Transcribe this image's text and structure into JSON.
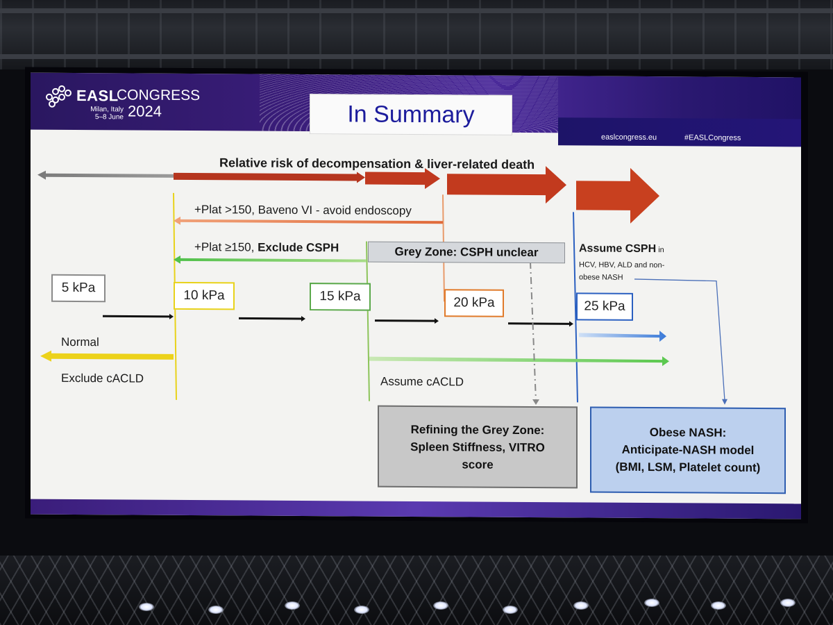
{
  "banner": {
    "brand": "EASL",
    "brand_word": "CONGRESS",
    "year": "2024",
    "city": "Milan, Italy",
    "dates": "5–8 June",
    "website": "easlcongress.eu",
    "hashtag": "#EASLCongress"
  },
  "slide": {
    "title": "In Summary",
    "risk_label": "Relative risk of decompensation & liver-related death",
    "baveno_text": "+Plat >150, Baveno VI - avoid endoscopy",
    "exclude_prefix": "+Plat ≥150, ",
    "exclude_bold": "Exclude CSPH",
    "grey_zone": "Grey Zone: CSPH unclear",
    "assume_cspph_bold": "Assume CSPH",
    "assume_cspph_in": " in",
    "assume_cspph_line2": "HCV, HBV, ALD and non-",
    "assume_cspph_line3": "obese NASH",
    "kpa": [
      "5 kPa",
      "10 kPa",
      "15 kPa",
      "20 kPa",
      "25 kPa"
    ],
    "normal": "Normal",
    "exclude_cacld": "Exclude cACLD",
    "assume_cacld": "Assume cACLD",
    "refine": [
      "Refining the Grey Zone:",
      "Spleen Stiffness, VITRO",
      "score"
    ],
    "obese": [
      "Obese NASH:",
      "Anticipate-NASH model",
      "(BMI, LSM, Platelet count)"
    ]
  },
  "colors": {
    "kpa_borders": [
      "#8a8a8a",
      "#e8d21a",
      "#5aa84a",
      "#e07a2a",
      "#2a5fc0"
    ],
    "risk_arrow": "#c0391f",
    "banner": "#3a1d7a"
  }
}
